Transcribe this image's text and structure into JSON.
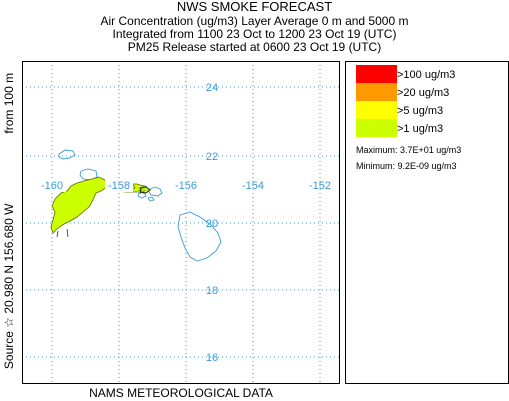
{
  "header": {
    "title": "NWS SMOKE FORECAST",
    "line2": "Air Concentration (ug/m3) Layer Average    0 m and  5000 m",
    "line3": "Integrated from 1100 23 Oct to 1200 23 Oct 19 (UTC)",
    "line4": "PM25 Release started at 0600 23 Oct 19 (UTC)"
  },
  "side_label": {
    "source": "Source ☆  20.980  N 156.680  W",
    "height": "from   100 m"
  },
  "footer": "NAMS METEOROLOGICAL DATA",
  "map": {
    "latitude_labels": [
      "24",
      "22",
      "20",
      "18",
      "16"
    ],
    "longitude_labels": [
      "-160",
      "-158",
      "-156",
      "-154",
      "-152"
    ],
    "gridline_color": "#3a9bd5",
    "coastline_color": "#3a9bd5"
  },
  "legend": {
    "items": [
      {
        "label": ">100 ug/m3",
        "color": "#ff0000"
      },
      {
        "label": ">20 ug/m3",
        "color": "#ff9900"
      },
      {
        "label": ">5 ug/m3",
        "color": "#ffff00"
      },
      {
        "label": ">1 ug/m3",
        "color": "#ccff00"
      }
    ],
    "maximum": "Maximum:  3.7E+01 ug/m3",
    "minimum": "Minimum:  9.2E-09 ug/m3"
  }
}
